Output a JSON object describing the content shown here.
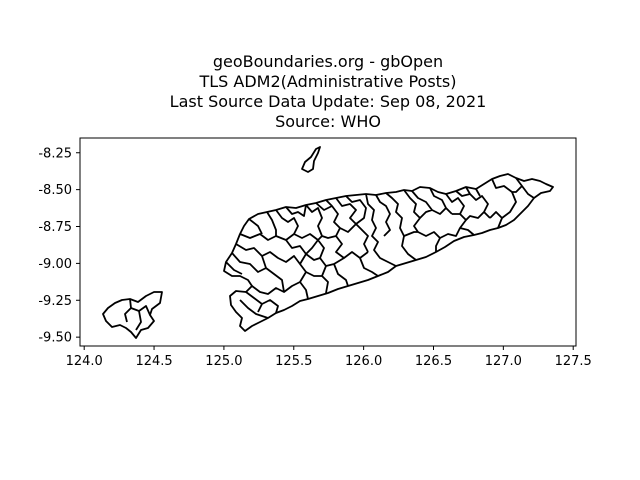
{
  "title": {
    "line1": "geoBoundaries.org - gbOpen",
    "line2": "TLS ADM2(Administrative Posts)",
    "line3": "Last Source Data Update: Sep 08, 2021",
    "line4": "Source: WHO"
  },
  "map_data": {
    "type": "map",
    "x_axis": {
      "range": [
        123.97,
        127.52
      ],
      "ticks": [
        124.0,
        124.5,
        125.0,
        125.5,
        126.0,
        126.5,
        127.0,
        127.5
      ],
      "tick_labels": [
        "124.0",
        "124.5",
        "125.0",
        "125.5",
        "126.0",
        "126.5",
        "127.0",
        "127.5"
      ]
    },
    "y_axis": {
      "range": [
        -9.56,
        -8.15
      ],
      "ticks": [
        -8.25,
        -8.5,
        -8.75,
        -9.0,
        -9.25,
        -9.5
      ],
      "tick_labels": [
        "-8.25",
        "-8.50",
        "-8.75",
        "-9.00",
        "-9.25",
        "-9.50"
      ]
    },
    "colors": {
      "boundary": "#000000",
      "background": "#ffffff"
    }
  }
}
